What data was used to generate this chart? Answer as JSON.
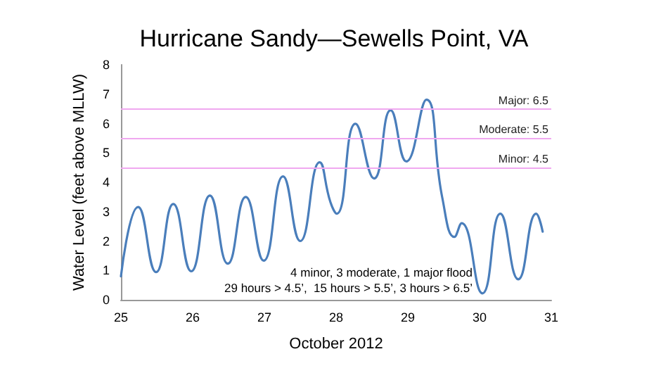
{
  "chart_data": {
    "type": "line",
    "title": "Hurricane Sandy—Sewells Point, VA",
    "xlabel": "October 2012",
    "ylabel": "Water Level (feet above MLLW)",
    "x": [
      25.0,
      25.24,
      25.49,
      25.73,
      25.98,
      26.24,
      26.49,
      26.74,
      26.99,
      27.26,
      27.5,
      27.77,
      27.92,
      28.01,
      28.27,
      28.53,
      28.76,
      28.98,
      29.26,
      29.48,
      29.65,
      29.75,
      30.04,
      30.29,
      30.54,
      30.79,
      30.88
    ],
    "series": [
      {
        "color": "#4a7ebb",
        "values": [
          0.8,
          3.16,
          0.94,
          3.26,
          0.97,
          3.55,
          1.23,
          3.5,
          1.33,
          4.2,
          2.0,
          4.68,
          3.33,
          2.93,
          5.99,
          4.13,
          6.45,
          4.71,
          6.81,
          3.48,
          2.14,
          2.61,
          0.22,
          2.93,
          0.7,
          2.93,
          2.32
        ]
      }
    ],
    "xlim": [
      25,
      31
    ],
    "xticks": [
      25,
      26,
      27,
      28,
      29,
      30,
      31
    ],
    "ylim": [
      0,
      8
    ],
    "yticks": [
      0,
      1,
      2,
      3,
      4,
      5,
      6,
      7,
      8
    ],
    "ref_lines": [
      {
        "axis": "y",
        "value": 6.5,
        "label": "Major: 6.5",
        "color": "#f0a8f0"
      },
      {
        "axis": "y",
        "value": 5.5,
        "label": "Moderate: 5.5",
        "color": "#f0a8f0"
      },
      {
        "axis": "y",
        "value": 4.5,
        "label": "Minor: 4.5",
        "color": "#f0a8f0"
      }
    ],
    "annotations": [
      "4 minor, 3 moderate, 1 major flood",
      "29 hours > 4.5’,  15 hours > 5.5’, 3 hours > 6.5’"
    ],
    "grid": false,
    "marker": "none",
    "line_style": "solid"
  }
}
